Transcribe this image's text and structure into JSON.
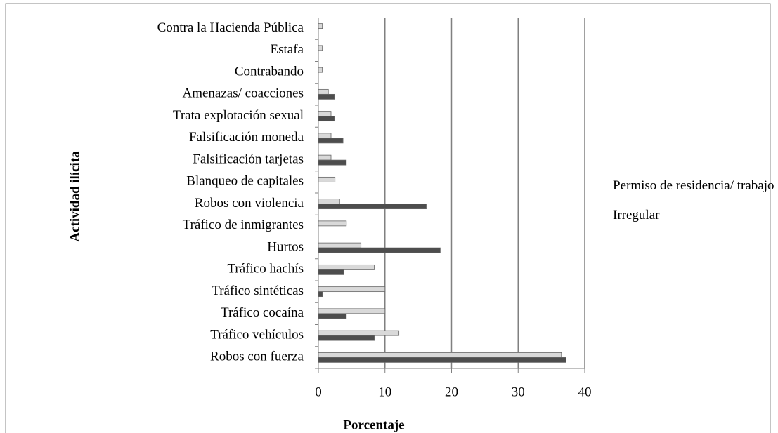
{
  "chart_data": {
    "type": "barh",
    "xlabel": "Porcentaje",
    "ylabel": "Actividad ilícita",
    "categories": [
      "Robos con fuerza",
      "Tráfico vehículos",
      "Tráfico cocaína",
      "Tráfico sintéticas",
      "Tráfico hachís",
      "Hurtos",
      "Tráfico de inmigrantes",
      "Robos con violencia",
      "Blanqueo de capitales",
      "Falsificación tarjetas",
      "Falsificación moneda",
      "Trata explotación sexual",
      "Amenazas/ coacciones",
      "Contrabando",
      "Estafa",
      "Contra la Hacienda Pública"
    ],
    "series": [
      {
        "name": "Permiso de residencia/ trabajo",
        "color": "#d9d9d9",
        "values": [
          36.5,
          12.1,
          10,
          10,
          8.4,
          6.4,
          4.2,
          3.2,
          2.5,
          1.9,
          1.9,
          1.9,
          1.5,
          0.6,
          0.6,
          0.6
        ]
      },
      {
        "name": "Irregular",
        "color": "#4d4d4d",
        "values": [
          37.2,
          8.4,
          4.2,
          0.6,
          3.8,
          18.3,
          0,
          16.2,
          0,
          4.2,
          3.7,
          2.4,
          2.4,
          0,
          0,
          0
        ]
      }
    ],
    "xlim": [
      0,
      40
    ],
    "xticks": [
      0,
      10,
      20,
      30,
      40
    ],
    "grid": true,
    "legend": "right"
  }
}
